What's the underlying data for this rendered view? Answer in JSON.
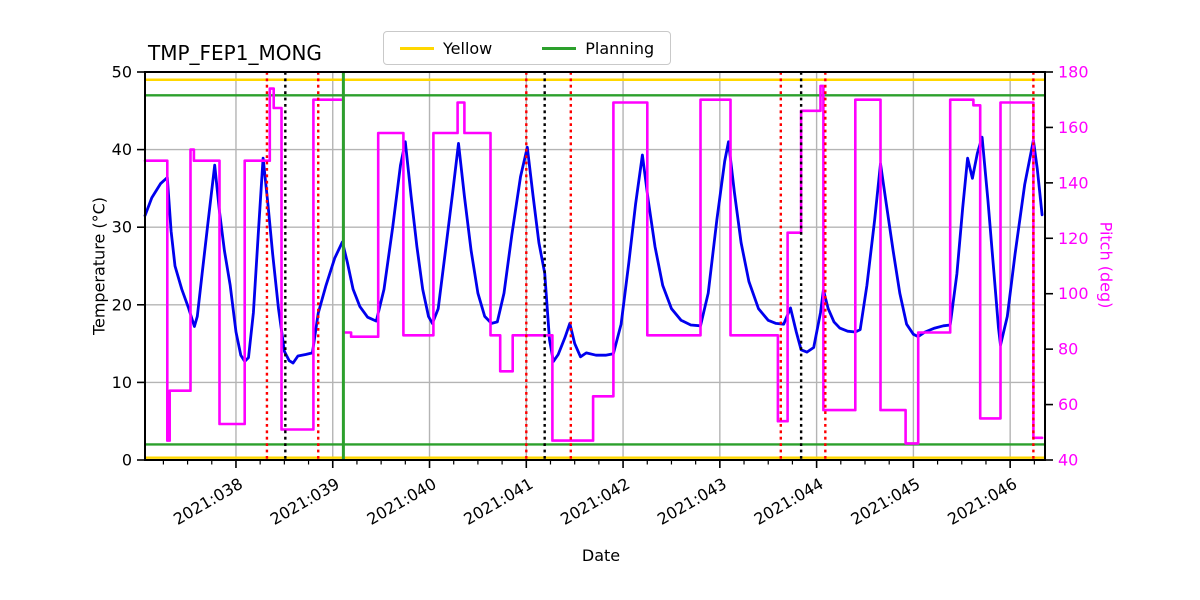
{
  "figure": {
    "title": "TMP_FEP1_MONG",
    "xlabel": "Date",
    "ylabel_left": "Temperature (°C)",
    "ylabel_right": "Pitch (deg)"
  },
  "legend": {
    "items": [
      {
        "label": "Yellow",
        "color": "#ffd700"
      },
      {
        "label": "Planning",
        "color": "#2ca02c"
      }
    ]
  },
  "chart_data": {
    "type": "line",
    "title": "TMP_FEP1_MONG",
    "xlabel": "Date",
    "ylabel": "Temperature (°C)",
    "ylabel_right": "Pitch (deg)",
    "x_unit": "day_of_year_2021",
    "xlim": [
      37.06,
      46.36
    ],
    "ylim": [
      0,
      50
    ],
    "ylim_right": [
      40,
      180
    ],
    "grid": true,
    "minor_tick_step": 0.25,
    "xticks": {
      "values": [
        38,
        39,
        40,
        41,
        42,
        43,
        44,
        45,
        46
      ],
      "labels": [
        "2021:038",
        "2021:039",
        "2021:040",
        "2021:041",
        "2021:042",
        "2021:043",
        "2021:044",
        "2021:045",
        "2021:046"
      ]
    },
    "yticks": [
      0,
      10,
      20,
      30,
      40,
      50
    ],
    "yticks_right": [
      40,
      60,
      80,
      100,
      120,
      140,
      160,
      180
    ],
    "hlines": [
      {
        "name": "yellow-high-limit",
        "y": 49,
        "color": "#ffd700"
      },
      {
        "name": "yellow-low-limit",
        "y": 0.3,
        "color": "#ffd700"
      },
      {
        "name": "planning-high-limit",
        "y": 47,
        "color": "#2ca02c"
      },
      {
        "name": "planning-low-limit",
        "y": 2,
        "color": "#2ca02c"
      }
    ],
    "vlines": [
      {
        "x": 38.32,
        "color": "#ff0000",
        "style": "dotted"
      },
      {
        "x": 38.51,
        "color": "#000000",
        "style": "dotted"
      },
      {
        "x": 38.85,
        "color": "#ff0000",
        "style": "dotted"
      },
      {
        "x": 39.11,
        "color": "#2ca02c",
        "style": "solid"
      },
      {
        "x": 41.0,
        "color": "#ff0000",
        "style": "dotted"
      },
      {
        "x": 41.19,
        "color": "#000000",
        "style": "dotted"
      },
      {
        "x": 41.46,
        "color": "#ff0000",
        "style": "dotted"
      },
      {
        "x": 43.63,
        "color": "#ff0000",
        "style": "dotted"
      },
      {
        "x": 43.84,
        "color": "#000000",
        "style": "dotted"
      },
      {
        "x": 44.09,
        "color": "#ff0000",
        "style": "dotted"
      },
      {
        "x": 46.24,
        "color": "#ff0000",
        "style": "dotted"
      }
    ],
    "series": [
      {
        "name": "Temperature",
        "axis": "left",
        "color": "#0000ee",
        "width": 2.8,
        "points": [
          [
            37.06,
            31.5
          ],
          [
            37.13,
            33.8
          ],
          [
            37.22,
            35.6
          ],
          [
            37.29,
            36.4
          ],
          [
            37.33,
            29.5
          ],
          [
            37.37,
            25.0
          ],
          [
            37.44,
            22.0
          ],
          [
            37.51,
            19.6
          ],
          [
            37.57,
            17.2
          ],
          [
            37.6,
            18.5
          ],
          [
            37.65,
            24.0
          ],
          [
            37.71,
            30.5
          ],
          [
            37.78,
            38.0
          ],
          [
            37.83,
            32.0
          ],
          [
            37.88,
            27.0
          ],
          [
            37.94,
            22.5
          ],
          [
            38.0,
            16.5
          ],
          [
            38.05,
            13.5
          ],
          [
            38.09,
            12.7
          ],
          [
            38.13,
            13.2
          ],
          [
            38.18,
            19.0
          ],
          [
            38.23,
            29.0
          ],
          [
            38.28,
            38.9
          ],
          [
            38.33,
            33.0
          ],
          [
            38.38,
            26.5
          ],
          [
            38.44,
            19.5
          ],
          [
            38.5,
            14.0
          ],
          [
            38.55,
            12.8
          ],
          [
            38.59,
            12.5
          ],
          [
            38.64,
            13.4
          ],
          [
            38.72,
            13.6
          ],
          [
            38.79,
            13.8
          ],
          [
            38.85,
            18.9
          ],
          [
            38.93,
            22.5
          ],
          [
            39.02,
            26.0
          ],
          [
            39.1,
            28.1
          ],
          [
            39.15,
            25.5
          ],
          [
            39.21,
            22.0
          ],
          [
            39.28,
            19.8
          ],
          [
            39.36,
            18.4
          ],
          [
            39.45,
            17.9
          ],
          [
            39.53,
            22.0
          ],
          [
            39.62,
            30.0
          ],
          [
            39.7,
            38.0
          ],
          [
            39.75,
            41.0
          ],
          [
            39.81,
            34.0
          ],
          [
            39.87,
            27.5
          ],
          [
            39.93,
            22.0
          ],
          [
            39.99,
            18.5
          ],
          [
            40.03,
            17.6
          ],
          [
            40.09,
            19.5
          ],
          [
            40.16,
            26.5
          ],
          [
            40.24,
            34.5
          ],
          [
            40.3,
            40.8
          ],
          [
            40.36,
            34.0
          ],
          [
            40.43,
            27.0
          ],
          [
            40.5,
            21.5
          ],
          [
            40.57,
            18.5
          ],
          [
            40.64,
            17.6
          ],
          [
            40.7,
            17.8
          ],
          [
            40.77,
            21.5
          ],
          [
            40.85,
            29.0
          ],
          [
            40.94,
            36.5
          ],
          [
            41.01,
            40.3
          ],
          [
            41.07,
            34.0
          ],
          [
            41.13,
            28.0
          ],
          [
            41.19,
            24.1
          ],
          [
            41.24,
            15.5
          ],
          [
            41.28,
            12.7
          ],
          [
            41.33,
            13.6
          ],
          [
            41.4,
            15.8
          ],
          [
            41.45,
            17.6
          ],
          [
            41.5,
            15.0
          ],
          [
            41.56,
            13.3
          ],
          [
            41.62,
            13.8
          ],
          [
            41.72,
            13.5
          ],
          [
            41.82,
            13.5
          ],
          [
            41.9,
            13.7
          ],
          [
            41.98,
            17.5
          ],
          [
            42.06,
            25.5
          ],
          [
            42.13,
            33.0
          ],
          [
            42.2,
            39.3
          ],
          [
            42.26,
            33.5
          ],
          [
            42.33,
            27.5
          ],
          [
            42.41,
            22.5
          ],
          [
            42.5,
            19.5
          ],
          [
            42.6,
            18.0
          ],
          [
            42.7,
            17.4
          ],
          [
            42.8,
            17.3
          ],
          [
            42.88,
            21.5
          ],
          [
            42.97,
            31.0
          ],
          [
            43.05,
            38.5
          ],
          [
            43.09,
            41.0
          ],
          [
            43.15,
            34.5
          ],
          [
            43.22,
            28.0
          ],
          [
            43.3,
            23.0
          ],
          [
            43.4,
            19.5
          ],
          [
            43.5,
            18.0
          ],
          [
            43.58,
            17.6
          ],
          [
            43.66,
            17.5
          ],
          [
            43.73,
            19.6
          ],
          [
            43.79,
            16.5
          ],
          [
            43.84,
            14.2
          ],
          [
            43.9,
            13.9
          ],
          [
            43.97,
            14.5
          ],
          [
            44.04,
            19.0
          ],
          [
            44.07,
            21.9
          ],
          [
            44.12,
            19.5
          ],
          [
            44.18,
            17.8
          ],
          [
            44.24,
            17.0
          ],
          [
            44.32,
            16.6
          ],
          [
            44.4,
            16.5
          ],
          [
            44.45,
            16.8
          ],
          [
            44.52,
            22.5
          ],
          [
            44.6,
            31.0
          ],
          [
            44.66,
            38.2
          ],
          [
            44.72,
            33.0
          ],
          [
            44.79,
            27.0
          ],
          [
            44.86,
            21.5
          ],
          [
            44.93,
            17.5
          ],
          [
            45.0,
            16.2
          ],
          [
            45.05,
            15.9
          ],
          [
            45.12,
            16.5
          ],
          [
            45.22,
            17.0
          ],
          [
            45.31,
            17.3
          ],
          [
            45.38,
            17.4
          ],
          [
            45.45,
            24.0
          ],
          [
            45.51,
            32.5
          ],
          [
            45.56,
            38.9
          ],
          [
            45.61,
            36.3
          ],
          [
            45.66,
            39.5
          ],
          [
            45.71,
            41.6
          ],
          [
            45.77,
            33.5
          ],
          [
            45.83,
            24.5
          ],
          [
            45.88,
            17.0
          ],
          [
            45.9,
            14.8
          ],
          [
            45.97,
            18.5
          ],
          [
            46.05,
            26.5
          ],
          [
            46.15,
            35.5
          ],
          [
            46.24,
            41.2
          ],
          [
            46.28,
            37.5
          ],
          [
            46.33,
            31.6
          ]
        ]
      },
      {
        "name": "Pitch",
        "axis": "right",
        "color": "#ff00ff",
        "width": 2.6,
        "style": "step",
        "points": [
          [
            37.06,
            148
          ],
          [
            37.29,
            148
          ],
          [
            37.29,
            47
          ],
          [
            37.315,
            47
          ],
          [
            37.315,
            65
          ],
          [
            37.53,
            65
          ],
          [
            37.53,
            152
          ],
          [
            37.565,
            152
          ],
          [
            37.565,
            148
          ],
          [
            37.83,
            148
          ],
          [
            37.83,
            53
          ],
          [
            38.09,
            53
          ],
          [
            38.09,
            148
          ],
          [
            38.35,
            148
          ],
          [
            38.35,
            174
          ],
          [
            38.39,
            174
          ],
          [
            38.39,
            167
          ],
          [
            38.47,
            167
          ],
          [
            38.47,
            51
          ],
          [
            38.8,
            51
          ],
          [
            38.8,
            170
          ],
          [
            39.11,
            170
          ],
          [
            39.11,
            86
          ],
          [
            39.19,
            86
          ],
          [
            39.19,
            84.5
          ],
          [
            39.47,
            84.5
          ],
          [
            39.47,
            158
          ],
          [
            39.73,
            158
          ],
          [
            39.73,
            85
          ],
          [
            40.04,
            85
          ],
          [
            40.04,
            158
          ],
          [
            40.29,
            158
          ],
          [
            40.29,
            169
          ],
          [
            40.36,
            169
          ],
          [
            40.36,
            158
          ],
          [
            40.63,
            158
          ],
          [
            40.63,
            85
          ],
          [
            40.73,
            85
          ],
          [
            40.73,
            72
          ],
          [
            40.86,
            72
          ],
          [
            40.86,
            85
          ],
          [
            41.27,
            85
          ],
          [
            41.27,
            47
          ],
          [
            41.69,
            47
          ],
          [
            41.69,
            63
          ],
          [
            41.9,
            63
          ],
          [
            41.9,
            169
          ],
          [
            42.25,
            169
          ],
          [
            42.25,
            85
          ],
          [
            42.8,
            85
          ],
          [
            42.8,
            170
          ],
          [
            43.11,
            170
          ],
          [
            43.11,
            85
          ],
          [
            43.6,
            85
          ],
          [
            43.6,
            54
          ],
          [
            43.7,
            54
          ],
          [
            43.7,
            122
          ],
          [
            43.84,
            122
          ],
          [
            43.84,
            166
          ],
          [
            44.04,
            166
          ],
          [
            44.04,
            175
          ],
          [
            44.07,
            175
          ],
          [
            44.07,
            58
          ],
          [
            44.4,
            58
          ],
          [
            44.4,
            170
          ],
          [
            44.66,
            170
          ],
          [
            44.66,
            58
          ],
          [
            44.92,
            58
          ],
          [
            44.92,
            46
          ],
          [
            45.05,
            46
          ],
          [
            45.05,
            86
          ],
          [
            45.38,
            86
          ],
          [
            45.38,
            170
          ],
          [
            45.62,
            170
          ],
          [
            45.62,
            168
          ],
          [
            45.69,
            168
          ],
          [
            45.69,
            55
          ],
          [
            45.9,
            55
          ],
          [
            45.9,
            169
          ],
          [
            46.24,
            169
          ],
          [
            46.24,
            48
          ],
          [
            46.33,
            48
          ]
        ]
      }
    ]
  }
}
